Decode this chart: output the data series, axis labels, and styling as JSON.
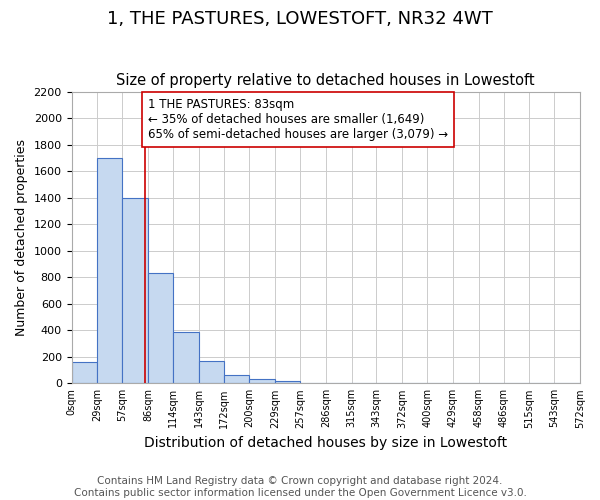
{
  "title": "1, THE PASTURES, LOWESTOFT, NR32 4WT",
  "subtitle": "Size of property relative to detached houses in Lowestoft",
  "bar_heights": [
    160,
    1700,
    1400,
    830,
    385,
    165,
    65,
    30,
    20,
    0,
    0,
    0,
    0,
    0,
    0,
    0,
    0,
    0,
    0,
    0
  ],
  "bin_edges": [
    0,
    29,
    57,
    86,
    114,
    143,
    172,
    200,
    229,
    257,
    286,
    315,
    343,
    372,
    400,
    429,
    458,
    486,
    515,
    543,
    572
  ],
  "tick_labels": [
    "0sqm",
    "29sqm",
    "57sqm",
    "86sqm",
    "114sqm",
    "143sqm",
    "172sqm",
    "200sqm",
    "229sqm",
    "257sqm",
    "286sqm",
    "315sqm",
    "343sqm",
    "372sqm",
    "400sqm",
    "429sqm",
    "458sqm",
    "486sqm",
    "515sqm",
    "543sqm",
    "572sqm"
  ],
  "ylabel": "Number of detached properties",
  "xlabel": "Distribution of detached houses by size in Lowestoft",
  "ylim": [
    0,
    2200
  ],
  "yticks": [
    0,
    200,
    400,
    600,
    800,
    1000,
    1200,
    1400,
    1600,
    1800,
    2000,
    2200
  ],
  "bar_color": "#c6d9f0",
  "bar_edge_color": "#4472c4",
  "bar_edge_width": 0.8,
  "property_line_x": 83,
  "property_line_color": "#cc0000",
  "annotation_line1": "1 THE PASTURES: 83sqm",
  "annotation_line2": "← 35% of detached houses are smaller (1,649)",
  "annotation_line3": "65% of semi-detached houses are larger (3,079) →",
  "annotation_box_edge_color": "#cc0000",
  "annotation_fontsize": 8.5,
  "footer_text": "Contains HM Land Registry data © Crown copyright and database right 2024.\nContains public sector information licensed under the Open Government Licence v3.0.",
  "title_fontsize": 13,
  "subtitle_fontsize": 10.5,
  "xlabel_fontsize": 10,
  "ylabel_fontsize": 9,
  "footer_fontsize": 7.5,
  "grid_color": "#cccccc",
  "background_color": "#ffffff"
}
